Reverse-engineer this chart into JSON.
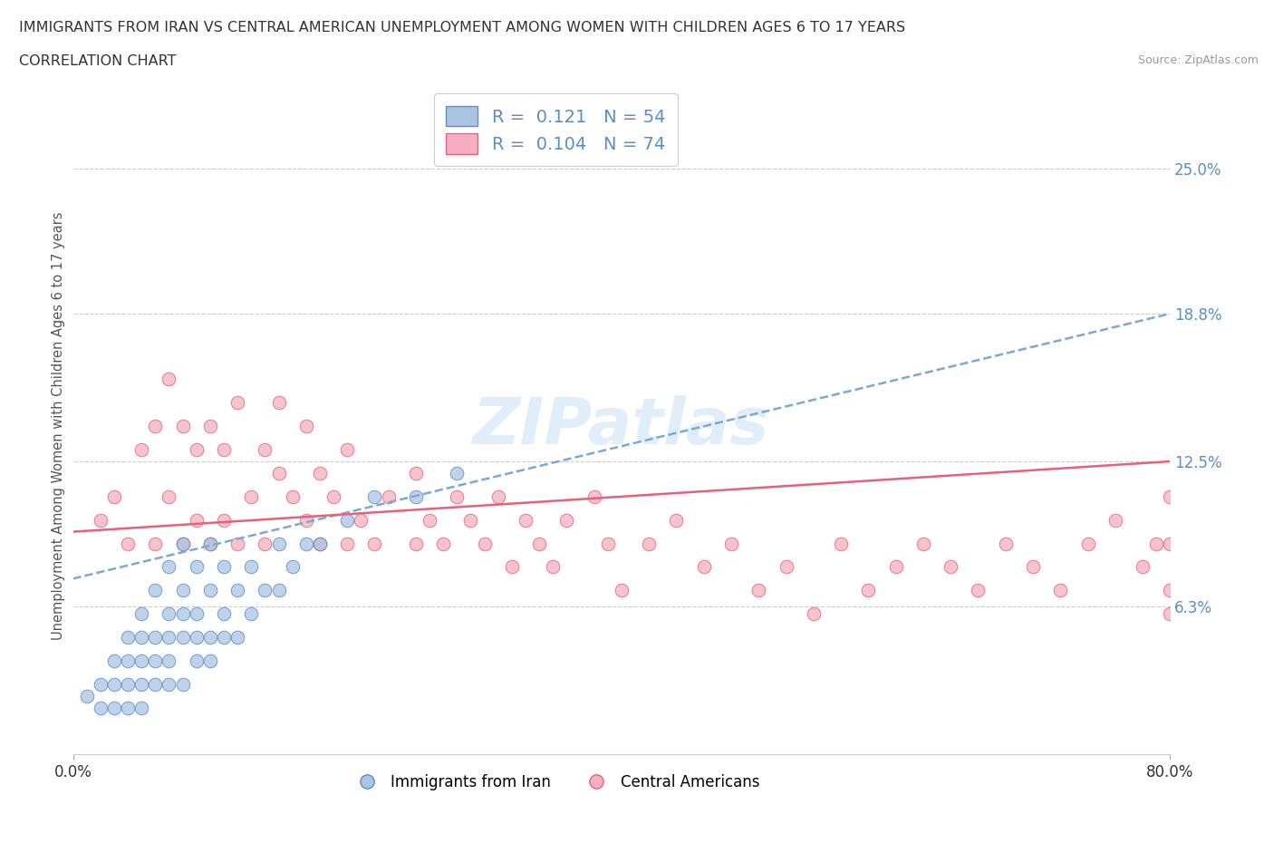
{
  "title_line1": "IMMIGRANTS FROM IRAN VS CENTRAL AMERICAN UNEMPLOYMENT AMONG WOMEN WITH CHILDREN AGES 6 TO 17 YEARS",
  "title_line2": "CORRELATION CHART",
  "source": "Source: ZipAtlas.com",
  "ylabel_label": "Unemployment Among Women with Children Ages 6 to 17 years",
  "ytick_values": [
    6.3,
    12.5,
    18.8,
    25.0
  ],
  "xmin": 0.0,
  "xmax": 80.0,
  "ymin": 0.0,
  "ymax": 28.0,
  "legend_r1_text": "R =  0.121   N = 54",
  "legend_r2_text": "R =  0.104   N = 74",
  "iran_fill_color": "#aac4e2",
  "iran_edge_color": "#5b8ec4",
  "central_fill_color": "#f5afc0",
  "central_edge_color": "#e8607a",
  "iran_line_color": "#7aaad4",
  "central_line_color": "#e8607a",
  "watermark": "ZIPatlas",
  "iran_scatter_x": [
    1,
    2,
    2,
    3,
    3,
    3,
    4,
    4,
    4,
    4,
    5,
    5,
    5,
    5,
    5,
    6,
    6,
    6,
    6,
    7,
    7,
    7,
    7,
    7,
    8,
    8,
    8,
    8,
    8,
    9,
    9,
    9,
    9,
    10,
    10,
    10,
    10,
    11,
    11,
    11,
    12,
    12,
    13,
    13,
    14,
    15,
    15,
    16,
    17,
    18,
    20,
    22,
    25,
    28
  ],
  "iran_scatter_y": [
    2.5,
    2,
    3,
    2,
    3,
    4,
    2,
    3,
    4,
    5,
    2,
    3,
    4,
    5,
    6,
    3,
    4,
    5,
    7,
    3,
    4,
    5,
    6,
    8,
    3,
    5,
    6,
    7,
    9,
    4,
    5,
    6,
    8,
    4,
    5,
    7,
    9,
    5,
    6,
    8,
    5,
    7,
    6,
    8,
    7,
    7,
    9,
    8,
    9,
    9,
    10,
    11,
    11,
    12
  ],
  "central_scatter_x": [
    2,
    3,
    4,
    5,
    6,
    6,
    7,
    7,
    8,
    8,
    9,
    9,
    10,
    10,
    11,
    11,
    12,
    12,
    13,
    14,
    14,
    15,
    15,
    16,
    17,
    17,
    18,
    18,
    19,
    20,
    20,
    21,
    22,
    23,
    25,
    25,
    26,
    27,
    28,
    29,
    30,
    31,
    32,
    33,
    34,
    35,
    36,
    38,
    39,
    40,
    42,
    44,
    46,
    48,
    50,
    52,
    54,
    56,
    58,
    60,
    62,
    64,
    66,
    68,
    70,
    72,
    74,
    76,
    78,
    79,
    80,
    80,
    80,
    80
  ],
  "central_scatter_y": [
    10,
    11,
    9,
    13,
    9,
    14,
    11,
    16,
    9,
    14,
    10,
    13,
    9,
    14,
    10,
    13,
    9,
    15,
    11,
    9,
    13,
    12,
    15,
    11,
    10,
    14,
    9,
    12,
    11,
    9,
    13,
    10,
    9,
    11,
    9,
    12,
    10,
    9,
    11,
    10,
    9,
    11,
    8,
    10,
    9,
    8,
    10,
    11,
    9,
    7,
    9,
    10,
    8,
    9,
    7,
    8,
    6,
    9,
    7,
    8,
    9,
    8,
    7,
    9,
    8,
    7,
    9,
    10,
    8,
    9,
    11,
    9,
    7,
    6
  ],
  "iran_trend_x": [
    0,
    80
  ],
  "iran_trend_y": [
    7.5,
    18.8
  ],
  "central_trend_x": [
    0,
    80
  ],
  "central_trend_y": [
    9.5,
    12.5
  ]
}
